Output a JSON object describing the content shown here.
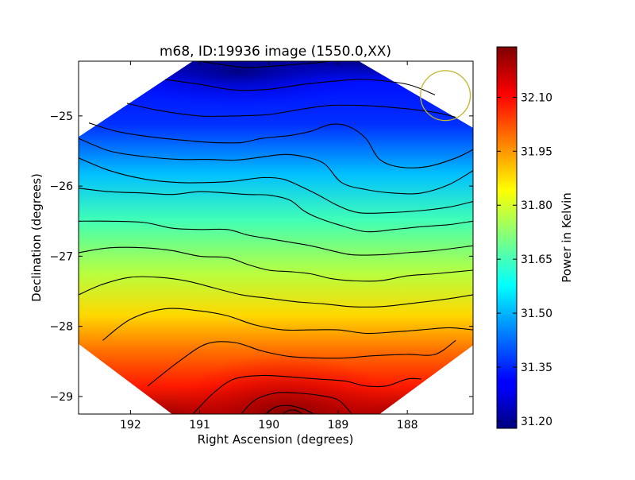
{
  "chart_data": {
    "type": "heatmap",
    "title": "m68, ID:19936 image (1550.0,XX)",
    "xlabel": "Right Ascension (degrees)",
    "ylabel": "Declination (degrees)",
    "xlim": [
      192.75,
      187.05
    ],
    "ylim": [
      -29.25,
      -24.22
    ],
    "x_ticks": [
      192,
      191,
      190,
      189,
      188
    ],
    "x_tick_labels": [
      "192",
      "191",
      "190",
      "189",
      "188"
    ],
    "y_ticks": [
      -25,
      -26,
      -27,
      -28,
      -29
    ],
    "y_tick_labels": [
      "−25",
      "−26",
      "−27",
      "−28",
      "−29"
    ],
    "colorbar": {
      "label": "Power in Kelvin",
      "range": [
        31.18,
        32.24
      ],
      "ticks": [
        31.2,
        31.35,
        31.5,
        31.65,
        31.8,
        31.95,
        32.1
      ],
      "tick_labels": [
        "31.20",
        "31.35",
        "31.50",
        "31.65",
        "31.80",
        "31.95",
        "32.10"
      ],
      "colormap": "jet"
    },
    "grid": false,
    "field_shape": "octagon",
    "field_corners": [
      {
        "ra": 191.1,
        "dec": -24.22
      },
      {
        "ra": 188.7,
        "dec": -24.22
      },
      {
        "ra": 187.05,
        "dec": -25.17
      },
      {
        "ra": 187.05,
        "dec": -28.27
      },
      {
        "ra": 188.4,
        "dec": -29.25
      },
      {
        "ra": 191.4,
        "dec": -29.25
      },
      {
        "ra": 192.75,
        "dec": -28.25
      },
      {
        "ra": 192.75,
        "dec": -25.3
      }
    ],
    "beam_marker": {
      "ra": 187.45,
      "dec": -24.71,
      "radius_deg": 0.36,
      "color": "#bfb526"
    },
    "contours": [
      {
        "points": [
          [
            191.0,
            -24.22
          ],
          [
            190.6,
            -24.28
          ],
          [
            190.3,
            -24.31
          ],
          [
            189.8,
            -24.28
          ],
          [
            189.4,
            -24.25
          ],
          [
            189.1,
            -24.22
          ]
        ]
      },
      {
        "points": [
          [
            191.5,
            -24.48
          ],
          [
            191.0,
            -24.55
          ],
          [
            190.5,
            -24.63
          ],
          [
            190.0,
            -24.62
          ],
          [
            189.5,
            -24.55
          ],
          [
            189.0,
            -24.5
          ],
          [
            188.6,
            -24.48
          ],
          [
            188.0,
            -24.55
          ],
          [
            187.6,
            -24.7
          ]
        ]
      },
      {
        "points": [
          [
            192.05,
            -24.82
          ],
          [
            191.6,
            -24.92
          ],
          [
            191.0,
            -25.0
          ],
          [
            190.5,
            -25.0
          ],
          [
            190.0,
            -24.98
          ],
          [
            189.5,
            -24.9
          ],
          [
            189.1,
            -24.85
          ],
          [
            188.7,
            -24.85
          ],
          [
            188.2,
            -24.88
          ],
          [
            187.6,
            -24.95
          ],
          [
            187.3,
            -25.02
          ]
        ]
      },
      {
        "points": [
          [
            192.6,
            -25.1
          ],
          [
            192.2,
            -25.22
          ],
          [
            191.7,
            -25.3
          ],
          [
            191.2,
            -25.35
          ],
          [
            190.8,
            -25.38
          ],
          [
            190.4,
            -25.38
          ],
          [
            190.1,
            -25.32
          ],
          [
            189.7,
            -25.28
          ],
          [
            189.4,
            -25.22
          ],
          [
            189.1,
            -25.12
          ],
          [
            188.85,
            -25.15
          ],
          [
            188.6,
            -25.32
          ],
          [
            188.4,
            -25.62
          ],
          [
            188.1,
            -25.73
          ],
          [
            187.7,
            -25.72
          ],
          [
            187.3,
            -25.6
          ],
          [
            187.05,
            -25.48
          ]
        ]
      },
      {
        "points": [
          [
            192.75,
            -25.32
          ],
          [
            192.3,
            -25.5
          ],
          [
            191.8,
            -25.58
          ],
          [
            191.3,
            -25.62
          ],
          [
            190.9,
            -25.62
          ],
          [
            190.5,
            -25.63
          ],
          [
            190.2,
            -25.6
          ],
          [
            189.8,
            -25.55
          ],
          [
            189.5,
            -25.58
          ],
          [
            189.2,
            -25.68
          ],
          [
            188.95,
            -25.95
          ],
          [
            188.6,
            -26.05
          ],
          [
            188.2,
            -26.1
          ],
          [
            187.8,
            -26.1
          ],
          [
            187.4,
            -25.98
          ],
          [
            187.05,
            -25.78
          ]
        ]
      },
      {
        "points": [
          [
            192.75,
            -25.6
          ],
          [
            192.3,
            -25.78
          ],
          [
            191.8,
            -25.9
          ],
          [
            191.3,
            -25.95
          ],
          [
            190.9,
            -25.95
          ],
          [
            190.5,
            -25.93
          ],
          [
            190.1,
            -25.88
          ],
          [
            189.8,
            -25.9
          ],
          [
            189.55,
            -26.0
          ],
          [
            189.3,
            -26.12
          ],
          [
            189.0,
            -26.28
          ],
          [
            188.7,
            -26.38
          ],
          [
            188.3,
            -26.38
          ],
          [
            187.8,
            -26.35
          ],
          [
            187.4,
            -26.3
          ],
          [
            187.05,
            -26.22
          ]
        ]
      },
      {
        "points": [
          [
            192.75,
            -26.03
          ],
          [
            192.3,
            -26.08
          ],
          [
            191.8,
            -26.1
          ],
          [
            191.4,
            -26.12
          ],
          [
            191.0,
            -26.08
          ],
          [
            190.6,
            -26.1
          ],
          [
            190.3,
            -26.12
          ],
          [
            190.0,
            -26.13
          ],
          [
            189.7,
            -26.2
          ],
          [
            189.5,
            -26.35
          ],
          [
            189.3,
            -26.45
          ],
          [
            189.0,
            -26.55
          ],
          [
            188.6,
            -26.65
          ],
          [
            188.2,
            -26.62
          ],
          [
            187.8,
            -26.58
          ],
          [
            187.4,
            -26.55
          ],
          [
            187.05,
            -26.5
          ]
        ]
      },
      {
        "points": [
          [
            192.75,
            -26.5
          ],
          [
            192.3,
            -26.5
          ],
          [
            191.8,
            -26.52
          ],
          [
            191.4,
            -26.6
          ],
          [
            191.0,
            -26.62
          ],
          [
            190.6,
            -26.62
          ],
          [
            190.3,
            -26.7
          ],
          [
            190.0,
            -26.75
          ],
          [
            189.7,
            -26.8
          ],
          [
            189.4,
            -26.85
          ],
          [
            189.1,
            -26.92
          ],
          [
            188.8,
            -26.98
          ],
          [
            188.4,
            -26.98
          ],
          [
            188.0,
            -26.95
          ],
          [
            187.6,
            -26.92
          ],
          [
            187.05,
            -26.85
          ]
        ]
      },
      {
        "points": [
          [
            192.75,
            -26.95
          ],
          [
            192.3,
            -26.88
          ],
          [
            191.8,
            -26.88
          ],
          [
            191.4,
            -26.92
          ],
          [
            191.0,
            -27.0
          ],
          [
            190.6,
            -27.02
          ],
          [
            190.3,
            -27.12
          ],
          [
            190.0,
            -27.2
          ],
          [
            189.7,
            -27.22
          ],
          [
            189.4,
            -27.25
          ],
          [
            189.1,
            -27.32
          ],
          [
            188.8,
            -27.35
          ],
          [
            188.4,
            -27.35
          ],
          [
            188.0,
            -27.28
          ],
          [
            187.6,
            -27.25
          ],
          [
            187.05,
            -27.2
          ]
        ]
      },
      {
        "points": [
          [
            192.75,
            -27.55
          ],
          [
            192.4,
            -27.4
          ],
          [
            192.0,
            -27.3
          ],
          [
            191.6,
            -27.3
          ],
          [
            191.2,
            -27.35
          ],
          [
            190.8,
            -27.45
          ],
          [
            190.4,
            -27.55
          ],
          [
            190.0,
            -27.6
          ],
          [
            189.6,
            -27.65
          ],
          [
            189.2,
            -27.68
          ],
          [
            188.8,
            -27.72
          ],
          [
            188.4,
            -27.72
          ],
          [
            188.0,
            -27.68
          ],
          [
            187.5,
            -27.62
          ],
          [
            187.05,
            -27.55
          ]
        ]
      },
      {
        "points": [
          [
            192.4,
            -28.2
          ],
          [
            192.0,
            -27.9
          ],
          [
            191.5,
            -27.75
          ],
          [
            191.0,
            -27.78
          ],
          [
            190.6,
            -27.85
          ],
          [
            190.2,
            -27.98
          ],
          [
            189.8,
            -28.05
          ],
          [
            189.4,
            -28.05
          ],
          [
            189.0,
            -28.05
          ],
          [
            188.6,
            -28.1
          ],
          [
            188.2,
            -28.08
          ],
          [
            187.8,
            -28.05
          ],
          [
            187.4,
            -28.02
          ],
          [
            187.05,
            -28.05
          ]
        ]
      },
      {
        "points": [
          [
            191.75,
            -28.85
          ],
          [
            191.3,
            -28.5
          ],
          [
            190.9,
            -28.25
          ],
          [
            190.5,
            -28.23
          ],
          [
            190.1,
            -28.35
          ],
          [
            189.7,
            -28.43
          ],
          [
            189.3,
            -28.45
          ],
          [
            188.9,
            -28.45
          ],
          [
            188.5,
            -28.42
          ],
          [
            188.0,
            -28.4
          ],
          [
            187.6,
            -28.4
          ],
          [
            187.3,
            -28.2
          ]
        ]
      },
      {
        "points": [
          [
            191.1,
            -29.25
          ],
          [
            190.8,
            -28.95
          ],
          [
            190.5,
            -28.75
          ],
          [
            190.1,
            -28.7
          ],
          [
            189.7,
            -28.72
          ],
          [
            189.3,
            -28.75
          ],
          [
            188.9,
            -28.78
          ],
          [
            188.6,
            -28.85
          ],
          [
            188.3,
            -28.85
          ],
          [
            188.0,
            -28.75
          ],
          [
            187.8,
            -28.75
          ]
        ]
      },
      {
        "points": [
          [
            190.4,
            -29.25
          ],
          [
            190.2,
            -29.05
          ],
          [
            189.9,
            -28.95
          ],
          [
            189.6,
            -28.95
          ],
          [
            189.3,
            -28.98
          ],
          [
            189.0,
            -29.05
          ],
          [
            188.8,
            -29.25
          ]
        ]
      },
      {
        "points": [
          [
            190.05,
            -29.25
          ],
          [
            189.9,
            -29.15
          ],
          [
            189.7,
            -29.13
          ],
          [
            189.5,
            -29.18
          ],
          [
            189.35,
            -29.25
          ]
        ]
      },
      {
        "points": [
          [
            189.8,
            -29.25
          ],
          [
            189.72,
            -29.2
          ],
          [
            189.6,
            -29.2
          ],
          [
            189.52,
            -29.25
          ]
        ]
      }
    ]
  }
}
